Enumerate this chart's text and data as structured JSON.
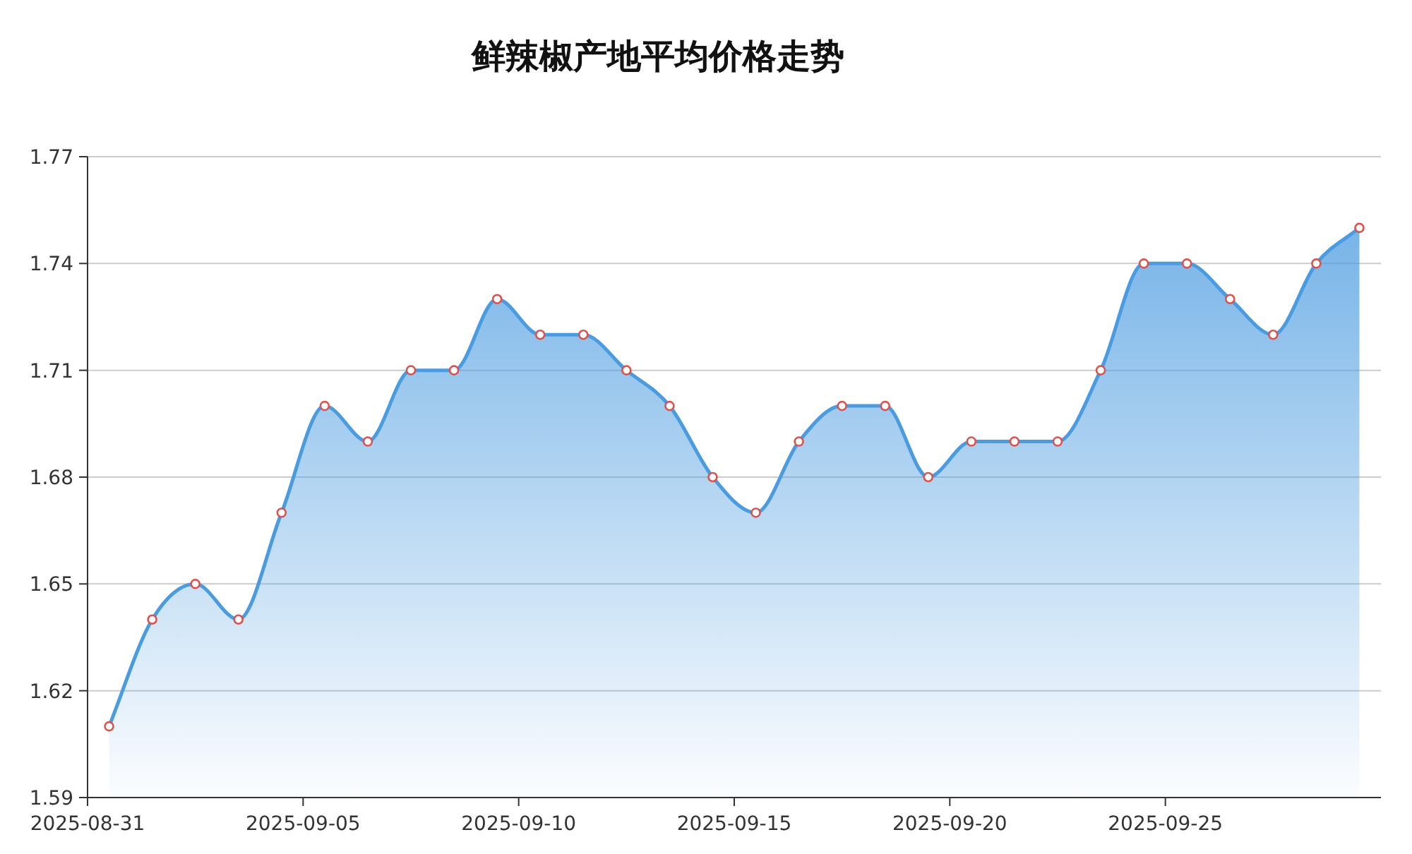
{
  "chart_data": {
    "type": "area",
    "title": "鲜辣椒产地平均价格走势",
    "x": [
      "2025-08-31T12:00",
      "2025-09-01T12:00",
      "2025-09-02T12:00",
      "2025-09-03T12:00",
      "2025-09-04T12:00",
      "2025-09-05T12:00",
      "2025-09-06T12:00",
      "2025-09-07T12:00",
      "2025-09-08T12:00",
      "2025-09-09T12:00",
      "2025-09-10T12:00",
      "2025-09-11T12:00",
      "2025-09-12T12:00",
      "2025-09-13T12:00",
      "2025-09-14T12:00",
      "2025-09-15T12:00",
      "2025-09-16T12:00",
      "2025-09-17T12:00",
      "2025-09-18T12:00",
      "2025-09-19T12:00",
      "2025-09-20T12:00",
      "2025-09-21T12:00",
      "2025-09-22T12:00",
      "2025-09-23T12:00",
      "2025-09-24T12:00",
      "2025-09-25T12:00",
      "2025-09-26T12:00",
      "2025-09-27T12:00",
      "2025-09-28T12:00",
      "2025-09-29T12:00"
    ],
    "values": [
      1.61,
      1.64,
      1.65,
      1.64,
      1.67,
      1.7,
      1.69,
      1.71,
      1.71,
      1.73,
      1.72,
      1.72,
      1.71,
      1.7,
      1.68,
      1.67,
      1.69,
      1.7,
      1.7,
      1.68,
      1.69,
      1.69,
      1.69,
      1.71,
      1.74,
      1.74,
      1.73,
      1.72,
      1.74,
      1.75
    ],
    "color": "#4a9be0",
    "xlim": [
      "2025-08-31",
      "2025-09-30"
    ],
    "xticks": [
      "2025-08-31",
      "2025-09-05",
      "2025-09-10",
      "2025-09-15",
      "2025-09-20",
      "2025-09-25"
    ],
    "ylim": [
      1.59,
      1.77
    ],
    "yticks": [
      1.59,
      1.62,
      1.65,
      1.68,
      1.71,
      1.74,
      1.77
    ],
    "grid": "y",
    "marker": "circle"
  }
}
